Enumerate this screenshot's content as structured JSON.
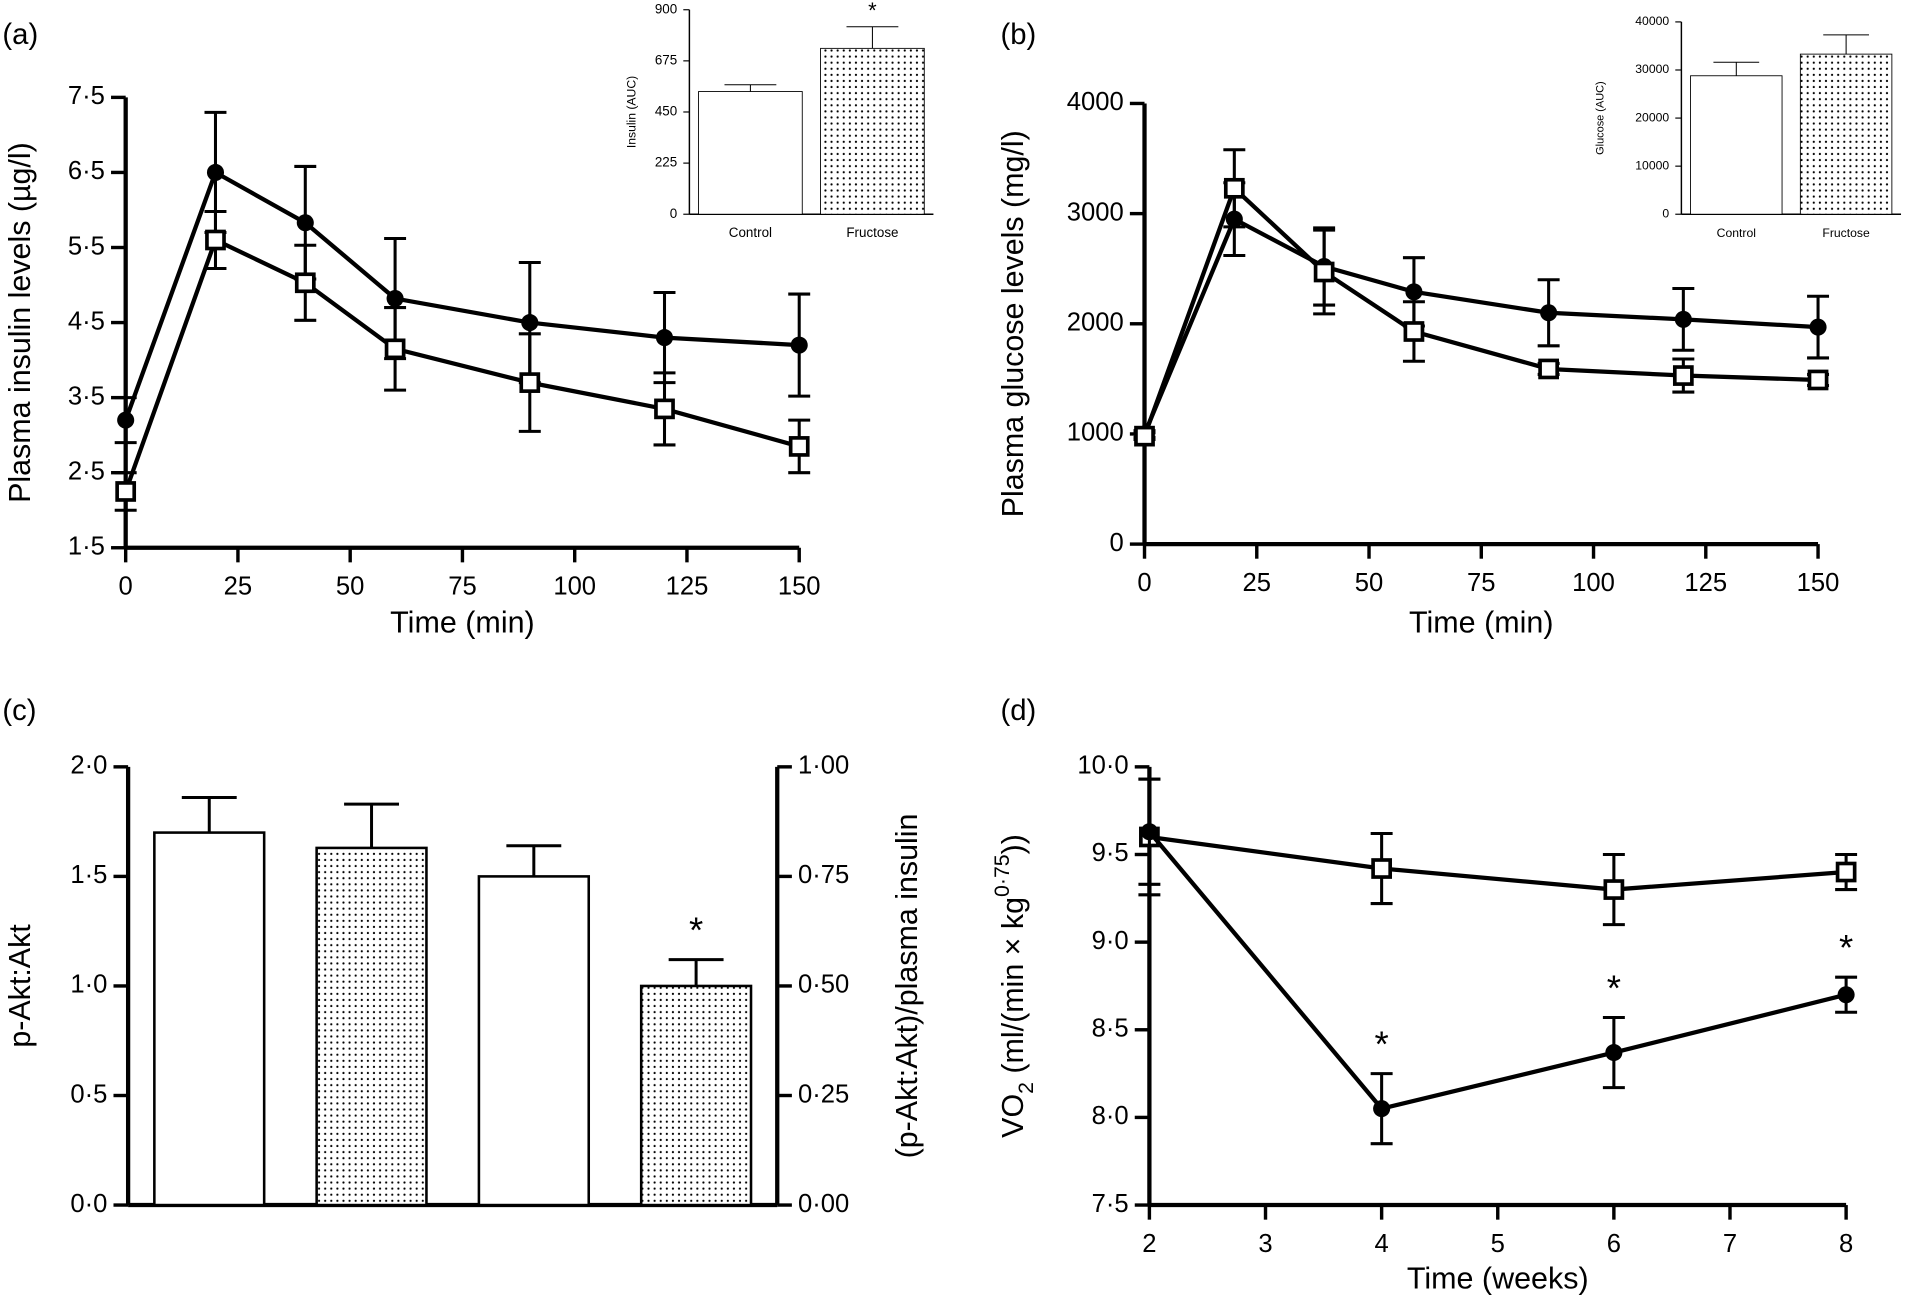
{
  "chart_data": [
    {
      "type": "line",
      "panel_label": "(a)",
      "xlabel": "Time (min)",
      "ylabel": "Plasma insulin levels (µg/l)",
      "xlim": [
        0,
        150
      ],
      "xticks": [
        0,
        25,
        50,
        75,
        100,
        125,
        150
      ],
      "ylim": [
        1.5,
        7.5
      ],
      "yticks": [
        {
          "value": 1.5,
          "label": "1·5"
        },
        {
          "value": 2.5,
          "label": "2·5"
        },
        {
          "value": 3.5,
          "label": "3·5"
        },
        {
          "value": 4.5,
          "label": "4·5"
        },
        {
          "value": 5.5,
          "label": "5·5"
        },
        {
          "value": 6.5,
          "label": "6·5"
        },
        {
          "value": 7.5,
          "label": "7·5"
        }
      ],
      "x": [
        0,
        20,
        40,
        60,
        90,
        120,
        150
      ],
      "series": [
        {
          "marker": "circle",
          "color": "#000000",
          "values": [
            3.2,
            6.5,
            5.83,
            4.82,
            4.5,
            4.3,
            4.2
          ],
          "errors": [
            0.3,
            0.8,
            0.75,
            0.8,
            0.8,
            0.6,
            0.68
          ]
        },
        {
          "marker": "square",
          "color": "#000000",
          "values": [
            2.25,
            5.6,
            5.03,
            4.15,
            3.7,
            3.35,
            2.85
          ],
          "errors": [
            0.25,
            0.38,
            0.5,
            0.55,
            0.65,
            0.48,
            0.35
          ]
        }
      ]
    },
    {
      "type": "bar",
      "ylabel": "Insulin (AUC)",
      "categories": [
        "Control",
        "Fructose"
      ],
      "values": [
        540,
        730
      ],
      "errors": [
        30,
        95
      ],
      "patterns": [
        "open",
        "dotted"
      ],
      "ylim": [
        0,
        900
      ],
      "yticks": [
        0,
        225,
        450,
        675,
        900
      ],
      "annotations": [
        {
          "index": 1,
          "text": "*"
        }
      ]
    },
    {
      "type": "line",
      "panel_label": "(b)",
      "xlabel": "Time (min)",
      "ylabel": "Plasma glucose levels (mg/l)",
      "xlim": [
        0,
        150
      ],
      "xticks": [
        0,
        25,
        50,
        75,
        100,
        125,
        150
      ],
      "ylim": [
        0,
        4000
      ],
      "yticks": [
        0,
        1000,
        2000,
        3000,
        4000
      ],
      "x": [
        0,
        20,
        40,
        60,
        90,
        120,
        150
      ],
      "series": [
        {
          "marker": "circle",
          "color": "#000000",
          "values": [
            1000,
            2950,
            2520,
            2290,
            2100,
            2040,
            1970
          ],
          "errors": [
            30,
            330,
            350,
            310,
            300,
            280,
            280
          ]
        },
        {
          "marker": "square",
          "color": "#000000",
          "values": [
            980,
            3230,
            2470,
            1930,
            1590,
            1530,
            1490
          ],
          "errors": [
            30,
            350,
            380,
            270,
            50,
            150,
            50
          ]
        }
      ]
    },
    {
      "type": "bar",
      "ylabel": "Glucose (AUC)",
      "categories": [
        "Control",
        "Fructose"
      ],
      "values": [
        28800,
        33300
      ],
      "errors": [
        2800,
        4000
      ],
      "patterns": [
        "open",
        "dotted"
      ],
      "ylim": [
        0,
        40000
      ],
      "yticks": [
        0,
        10000,
        20000,
        30000,
        40000
      ]
    },
    {
      "type": "bar",
      "panel_label": "(c)",
      "ylabel": "p-Akt:Akt",
      "y2label": "(p-Akt:Akt)/plasma insulin",
      "categories": [
        null,
        null,
        null,
        null
      ],
      "series": [
        {
          "values": [
            1.7,
            1.63,
            null,
            null
          ],
          "errors": [
            0.16,
            0.2,
            null,
            null
          ]
        },
        {
          "axis": "y2",
          "values": [
            null,
            null,
            0.75,
            0.5
          ],
          "errors": [
            null,
            null,
            0.07,
            0.06
          ]
        }
      ],
      "patterns": [
        "open",
        "dotted",
        "open",
        "dotted"
      ],
      "ylim": [
        0,
        2
      ],
      "yticks": [
        {
          "value": 0,
          "label": "0·0"
        },
        {
          "value": 0.5,
          "label": "0·5"
        },
        {
          "value": 1,
          "label": "1·0"
        },
        {
          "value": 1.5,
          "label": "1·5"
        },
        {
          "value": 2,
          "label": "2·0"
        }
      ],
      "y2lim": [
        0,
        1
      ],
      "y2ticks": [
        {
          "value": 0,
          "label": "0·00"
        },
        {
          "value": 0.25,
          "label": "0·25"
        },
        {
          "value": 0.5,
          "label": "0·50"
        },
        {
          "value": 0.75,
          "label": "0·75"
        },
        {
          "value": 1,
          "label": "1·00"
        }
      ],
      "annotations": [
        {
          "series": 1,
          "index": 3,
          "text": "*"
        }
      ]
    },
    {
      "type": "line",
      "panel_label": "(d)",
      "xlabel": "Time (weeks)",
      "ylabel_parts": [
        "VO",
        "2",
        " (ml/(min × kg",
        "0·75",
        "))"
      ],
      "xlim": [
        2,
        8
      ],
      "xticks": [
        2,
        3,
        4,
        5,
        6,
        7,
        8
      ],
      "ylim": [
        7.5,
        10
      ],
      "yticks": [
        {
          "value": 7.5,
          "label": "7·5"
        },
        {
          "value": 8,
          "label": "8·0"
        },
        {
          "value": 8.5,
          "label": "8·5"
        },
        {
          "value": 9,
          "label": "9·0"
        },
        {
          "value": 9.5,
          "label": "9·5"
        },
        {
          "value": 10,
          "label": "10·0"
        }
      ],
      "x": [
        2,
        4,
        6,
        8
      ],
      "series": [
        {
          "marker": "square",
          "color": "#000000",
          "values": [
            9.6,
            9.42,
            9.3,
            9.4
          ],
          "errors": [
            0.33,
            0.2,
            0.2,
            0.1
          ]
        },
        {
          "marker": "circle",
          "color": "#000000",
          "values": [
            9.63,
            8.05,
            8.37,
            8.7
          ],
          "errors": [
            0.3,
            0.2,
            0.2,
            0.1
          ]
        }
      ],
      "annotations": [
        {
          "series": 1,
          "index": 1,
          "text": "*"
        },
        {
          "series": 1,
          "index": 2,
          "text": "*"
        },
        {
          "series": 1,
          "index": 3,
          "text": "*"
        }
      ]
    }
  ]
}
